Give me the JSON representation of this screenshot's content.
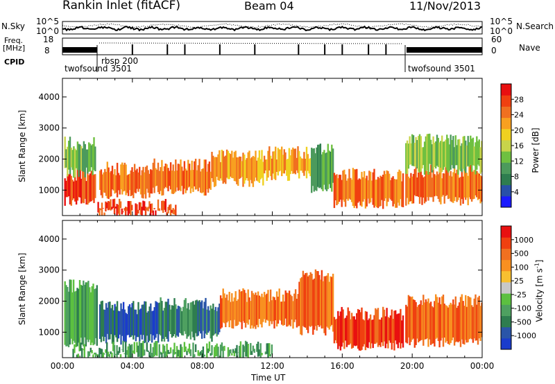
{
  "header": {
    "station": "Rankin Inlet (fitACF)",
    "beam": "Beam 04",
    "date": "11/Nov/2013"
  },
  "top_panels": {
    "nsky_label": "N.Sky",
    "nsearch_label": "N.Search",
    "noise_ticks_left": [
      "10^5",
      "10^0"
    ],
    "noise_ticks_right": [
      "10^5",
      "10^0"
    ],
    "freq_label_1": "Freq.",
    "freq_label_2": "[MHz]",
    "freq_ticks": [
      "18",
      "8"
    ],
    "nave_label": "Nave",
    "nave_ticks": [
      "60",
      "0"
    ],
    "cpid_label": "CPID",
    "cpid_segments": [
      {
        "name": "twofsound 3501",
        "start_hour": 0,
        "end_hour": 2.0
      },
      {
        "name": "rbsp 200",
        "start_hour": 2.0,
        "end_hour": 19.6
      },
      {
        "name": "twofsound 3501",
        "start_hour": 19.6,
        "end_hour": 24
      }
    ]
  },
  "chart_data": [
    {
      "type": "heatmap",
      "name": "power",
      "xlabel": "Time UT",
      "ylabel": "Slant Range [km]",
      "xlim": [
        0,
        24
      ],
      "ylim": [
        180,
        4600
      ],
      "xticks": [
        "00:00",
        "04:00",
        "08:00",
        "12:00",
        "16:00",
        "20:00",
        "00:00"
      ],
      "yticks": [
        1000,
        2000,
        3000,
        4000
      ],
      "colorbar": {
        "label": "Power [dB]",
        "ticks": [
          4,
          8,
          12,
          16,
          20,
          24,
          28
        ],
        "colors": [
          "#1a1aff",
          "#2850a8",
          "#2e7d4f",
          "#4c9a5c",
          "#6fc040",
          "#c8d44a",
          "#f0d020",
          "#f8a020",
          "#f07020",
          "#f04010",
          "#e81010"
        ]
      },
      "blobs": [
        {
          "t": [
            0.1,
            1.9
          ],
          "r": [
            600,
            1500
          ],
          "v": 27
        },
        {
          "t": [
            0.1,
            1.9
          ],
          "r": [
            1500,
            2500
          ],
          "v": 13
        },
        {
          "t": [
            2.1,
            5.0
          ],
          "r": [
            800,
            1700
          ],
          "v": 24
        },
        {
          "t": [
            2.0,
            6.5
          ],
          "r": [
            180,
            500
          ],
          "v": 26
        },
        {
          "t": [
            5.0,
            8.5
          ],
          "r": [
            900,
            1800
          ],
          "v": 23
        },
        {
          "t": [
            8.5,
            11.5
          ],
          "r": [
            1200,
            2100
          ],
          "v": 22
        },
        {
          "t": [
            11.5,
            14.2
          ],
          "r": [
            1400,
            2200
          ],
          "v": 20
        },
        {
          "t": [
            14.2,
            15.5
          ],
          "r": [
            1000,
            2300
          ],
          "v": 9
        },
        {
          "t": [
            15.5,
            19.5
          ],
          "r": [
            500,
            1500
          ],
          "v": 25
        },
        {
          "t": [
            19.6,
            24.0
          ],
          "r": [
            600,
            1600
          ],
          "v": 25
        },
        {
          "t": [
            19.6,
            24.0
          ],
          "r": [
            1600,
            2600
          ],
          "v": 13
        }
      ]
    },
    {
      "type": "heatmap",
      "name": "velocity",
      "xlabel": "Time UT",
      "ylabel": "Slant Range [km]",
      "xlim": [
        0,
        24
      ],
      "ylim": [
        180,
        4600
      ],
      "xticks": [
        "00:00",
        "04:00",
        "08:00",
        "12:00",
        "16:00",
        "20:00",
        "00:00"
      ],
      "yticks": [
        1000,
        2000,
        3000,
        4000
      ],
      "colorbar": {
        "label": "Velocity [m s-1]",
        "ticks": [
          "1000",
          "500",
          "100",
          "25",
          "-25",
          "-100",
          "-500",
          "-1000"
        ],
        "colors": [
          "#1a3ccc",
          "#2a55a8",
          "#2e7d4f",
          "#4ea060",
          "#5cc040",
          "#c8c8c8",
          "#f8c030",
          "#f89020",
          "#f07020",
          "#f04010",
          "#e81010"
        ]
      },
      "blobs": [
        {
          "t": [
            0.1,
            2.0
          ],
          "r": [
            600,
            2500
          ],
          "v": 3
        },
        {
          "t": [
            2.1,
            5.5
          ],
          "r": [
            700,
            1800
          ],
          "v": 1
        },
        {
          "t": [
            5.5,
            9.0
          ],
          "r": [
            800,
            1900
          ],
          "v": 2
        },
        {
          "t": [
            9.0,
            13.5
          ],
          "r": [
            1200,
            2200
          ],
          "v": 8
        },
        {
          "t": [
            13.5,
            15.5
          ],
          "r": [
            1000,
            2800
          ],
          "v": 8
        },
        {
          "t": [
            15.5,
            19.5
          ],
          "r": [
            500,
            1600
          ],
          "v": 9
        },
        {
          "t": [
            19.6,
            24.0
          ],
          "r": [
            600,
            2000
          ],
          "v": 8
        },
        {
          "t": [
            0.5,
            12.0
          ],
          "r": [
            180,
            500
          ],
          "v": 3
        }
      ]
    }
  ]
}
